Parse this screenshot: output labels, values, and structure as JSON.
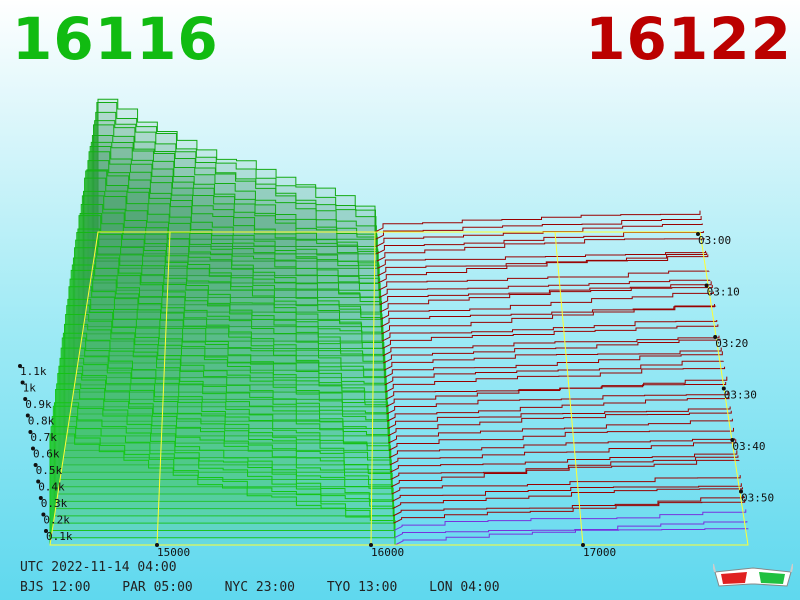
{
  "header": {
    "bid_price": "16116",
    "ask_price": "16122",
    "bid_color": "#11bb11",
    "ask_color": "#bb0000"
  },
  "footer": {
    "utc": "UTC 2022-11-14 04:00",
    "zones": [
      "BJS 12:00",
      "PAR 05:00",
      "NYC 23:00",
      "TYO 13:00",
      "LON 04:00"
    ]
  },
  "chart_data": {
    "type": "area",
    "x_ticks": [
      "15000",
      "16000",
      "17000"
    ],
    "y_ticks": [
      "0.1k",
      "0.2k",
      "0.3k",
      "0.4k",
      "0.5k",
      "0.6k",
      "0.7k",
      "0.8k",
      "0.9k",
      "1k",
      "1.1k"
    ],
    "time_ticks": [
      "03:00",
      "03:10",
      "03:20",
      "03:30",
      "03:40",
      "03:50"
    ],
    "bid_color": "#11bb11",
    "ask_color": "#990000",
    "grid_color": "#ffff33",
    "icon": "3d-glasses-icon"
  }
}
